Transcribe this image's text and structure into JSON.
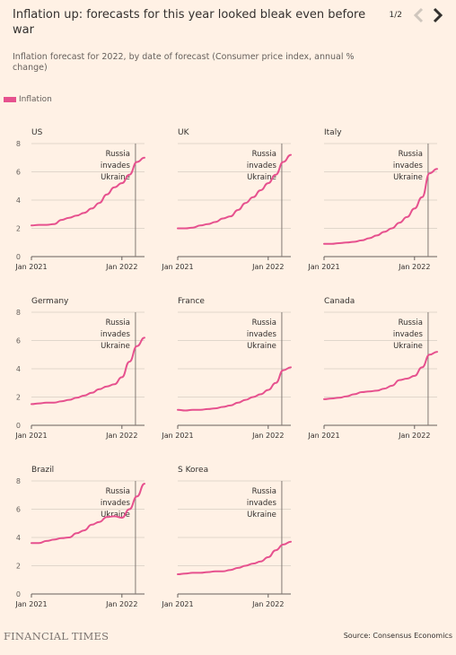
{
  "header": {
    "title": "Inflation up: forecasts for this year looked bleak even before war",
    "subtitle": "Inflation forecast for 2022, by date of forecast (Consumer price index, annual % change)",
    "pager": "1/2"
  },
  "legend": {
    "label": "Inflation",
    "color": "#e6518e"
  },
  "footer": {
    "brand": "FINANCIAL TIMES",
    "source": "Source: Consensus Economics"
  },
  "colors": {
    "background": "#fff1e5",
    "line": "#e6518e",
    "grid": "#d6ccc2",
    "vline": "#807973",
    "text": "#33302e"
  },
  "chart_data": [
    {
      "type": "line",
      "title": "US",
      "xlabel": "",
      "ylabel": "",
      "xtick_labels": [
        "Jan 2021",
        "Jan 2022"
      ],
      "ylim": [
        0,
        8
      ],
      "yticks": [
        0,
        2,
        4,
        6,
        8
      ],
      "grid": true,
      "annotation": "Russia invades Ukraine",
      "series": [
        {
          "name": "Inflation",
          "x": [
            "2021-01",
            "2021-02",
            "2021-03",
            "2021-04",
            "2021-05",
            "2021-06",
            "2021-07",
            "2021-08",
            "2021-09",
            "2021-10",
            "2021-11",
            "2021-12",
            "2022-01",
            "2022-02",
            "2022-03",
            "2022-04"
          ],
          "values": [
            2.2,
            2.25,
            2.25,
            2.3,
            2.6,
            2.75,
            2.9,
            3.1,
            3.4,
            3.8,
            4.4,
            4.9,
            5.2,
            5.8,
            6.7,
            7.0
          ]
        }
      ]
    },
    {
      "type": "line",
      "title": "UK",
      "xlabel": "",
      "ylabel": "",
      "xtick_labels": [
        "Jan 2021",
        "Jan 2022"
      ],
      "ylim": [
        0,
        8
      ],
      "yticks": [
        0,
        2,
        4,
        6,
        8
      ],
      "grid": true,
      "annotation": "Russia invades Ukraine",
      "series": [
        {
          "name": "Inflation",
          "x": [
            "2021-01",
            "2021-02",
            "2021-03",
            "2021-04",
            "2021-05",
            "2021-06",
            "2021-07",
            "2021-08",
            "2021-09",
            "2021-10",
            "2021-11",
            "2021-12",
            "2022-01",
            "2022-02",
            "2022-03",
            "2022-04"
          ],
          "values": [
            2.0,
            2.0,
            2.05,
            2.2,
            2.3,
            2.45,
            2.7,
            2.85,
            3.3,
            3.8,
            4.2,
            4.7,
            5.2,
            5.8,
            6.7,
            7.2
          ]
        }
      ]
    },
    {
      "type": "line",
      "title": "Italy",
      "xlabel": "",
      "ylabel": "",
      "xtick_labels": [
        "Jan 2021",
        "Jan 2022"
      ],
      "ylim": [
        0,
        8
      ],
      "yticks": [
        0,
        2,
        4,
        6,
        8
      ],
      "grid": true,
      "annotation": "Russia invades Ukraine",
      "series": [
        {
          "name": "Inflation",
          "x": [
            "2021-01",
            "2021-02",
            "2021-03",
            "2021-04",
            "2021-05",
            "2021-06",
            "2021-07",
            "2021-08",
            "2021-09",
            "2021-10",
            "2021-11",
            "2021-12",
            "2022-01",
            "2022-02",
            "2022-03",
            "2022-04"
          ],
          "values": [
            0.9,
            0.9,
            0.95,
            1.0,
            1.05,
            1.15,
            1.3,
            1.5,
            1.75,
            2.0,
            2.4,
            2.8,
            3.4,
            4.2,
            5.9,
            6.2
          ]
        }
      ]
    },
    {
      "type": "line",
      "title": "Germany",
      "xlabel": "",
      "ylabel": "",
      "xtick_labels": [
        "Jan 2021",
        "Jan 2022"
      ],
      "ylim": [
        0,
        8
      ],
      "yticks": [
        0,
        2,
        4,
        6,
        8
      ],
      "grid": true,
      "annotation": "Russia invades Ukraine",
      "series": [
        {
          "name": "Inflation",
          "x": [
            "2021-01",
            "2021-02",
            "2021-03",
            "2021-04",
            "2021-05",
            "2021-06",
            "2021-07",
            "2021-08",
            "2021-09",
            "2021-10",
            "2021-11",
            "2021-12",
            "2022-01",
            "2022-02",
            "2022-03",
            "2022-04"
          ],
          "values": [
            1.5,
            1.55,
            1.6,
            1.6,
            1.7,
            1.8,
            1.95,
            2.1,
            2.3,
            2.55,
            2.75,
            2.9,
            3.4,
            4.5,
            5.6,
            6.2
          ]
        }
      ]
    },
    {
      "type": "line",
      "title": "France",
      "xlabel": "",
      "ylabel": "",
      "xtick_labels": [
        "Jan 2021",
        "Jan 2022"
      ],
      "ylim": [
        0,
        8
      ],
      "yticks": [
        0,
        2,
        4,
        6,
        8
      ],
      "grid": true,
      "annotation": "Russia invades Ukraine",
      "series": [
        {
          "name": "Inflation",
          "x": [
            "2021-01",
            "2021-02",
            "2021-03",
            "2021-04",
            "2021-05",
            "2021-06",
            "2021-07",
            "2021-08",
            "2021-09",
            "2021-10",
            "2021-11",
            "2021-12",
            "2022-01",
            "2022-02",
            "2022-03",
            "2022-04"
          ],
          "values": [
            1.1,
            1.05,
            1.1,
            1.1,
            1.15,
            1.2,
            1.3,
            1.4,
            1.6,
            1.8,
            2.0,
            2.2,
            2.5,
            3.0,
            3.9,
            4.1
          ]
        }
      ]
    },
    {
      "type": "line",
      "title": "Canada",
      "xlabel": "",
      "ylabel": "",
      "xtick_labels": [
        "Jan 2021",
        "Jan 2022"
      ],
      "ylim": [
        0,
        8
      ],
      "yticks": [
        0,
        2,
        4,
        6,
        8
      ],
      "grid": true,
      "annotation": "Russia invades Ukraine",
      "series": [
        {
          "name": "Inflation",
          "x": [
            "2021-01",
            "2021-02",
            "2021-03",
            "2021-04",
            "2021-05",
            "2021-06",
            "2021-07",
            "2021-08",
            "2021-09",
            "2021-10",
            "2021-11",
            "2021-12",
            "2022-01",
            "2022-02",
            "2022-03",
            "2022-04"
          ],
          "values": [
            1.85,
            1.9,
            1.95,
            2.05,
            2.2,
            2.35,
            2.4,
            2.45,
            2.6,
            2.8,
            3.2,
            3.3,
            3.5,
            4.1,
            5.0,
            5.2
          ]
        }
      ]
    },
    {
      "type": "line",
      "title": "Brazil",
      "xlabel": "",
      "ylabel": "",
      "xtick_labels": [
        "Jan 2021",
        "Jan 2022"
      ],
      "ylim": [
        0,
        8
      ],
      "yticks": [
        0,
        2,
        4,
        6,
        8
      ],
      "grid": true,
      "annotation": "Russia invades Ukraine",
      "series": [
        {
          "name": "Inflation",
          "x": [
            "2021-01",
            "2021-02",
            "2021-03",
            "2021-04",
            "2021-05",
            "2021-06",
            "2021-07",
            "2021-08",
            "2021-09",
            "2021-10",
            "2021-11",
            "2021-12",
            "2022-01",
            "2022-02",
            "2022-03",
            "2022-04"
          ],
          "values": [
            3.6,
            3.6,
            3.75,
            3.85,
            3.95,
            4.0,
            4.3,
            4.5,
            4.9,
            5.1,
            5.45,
            5.5,
            5.4,
            6.0,
            6.9,
            7.8
          ]
        }
      ]
    },
    {
      "type": "line",
      "title": "S Korea",
      "xlabel": "",
      "ylabel": "",
      "xtick_labels": [
        "Jan 2021",
        "Jan 2022"
      ],
      "ylim": [
        0,
        8
      ],
      "yticks": [
        0,
        2,
        4,
        6,
        8
      ],
      "grid": true,
      "annotation": "Russia invades Ukraine",
      "series": [
        {
          "name": "Inflation",
          "x": [
            "2021-01",
            "2021-02",
            "2021-03",
            "2021-04",
            "2021-05",
            "2021-06",
            "2021-07",
            "2021-08",
            "2021-09",
            "2021-10",
            "2021-11",
            "2021-12",
            "2022-01",
            "2022-02",
            "2022-03",
            "2022-04"
          ],
          "values": [
            1.4,
            1.45,
            1.5,
            1.5,
            1.55,
            1.6,
            1.6,
            1.7,
            1.85,
            2.0,
            2.15,
            2.3,
            2.6,
            3.1,
            3.5,
            3.7
          ]
        }
      ]
    }
  ]
}
